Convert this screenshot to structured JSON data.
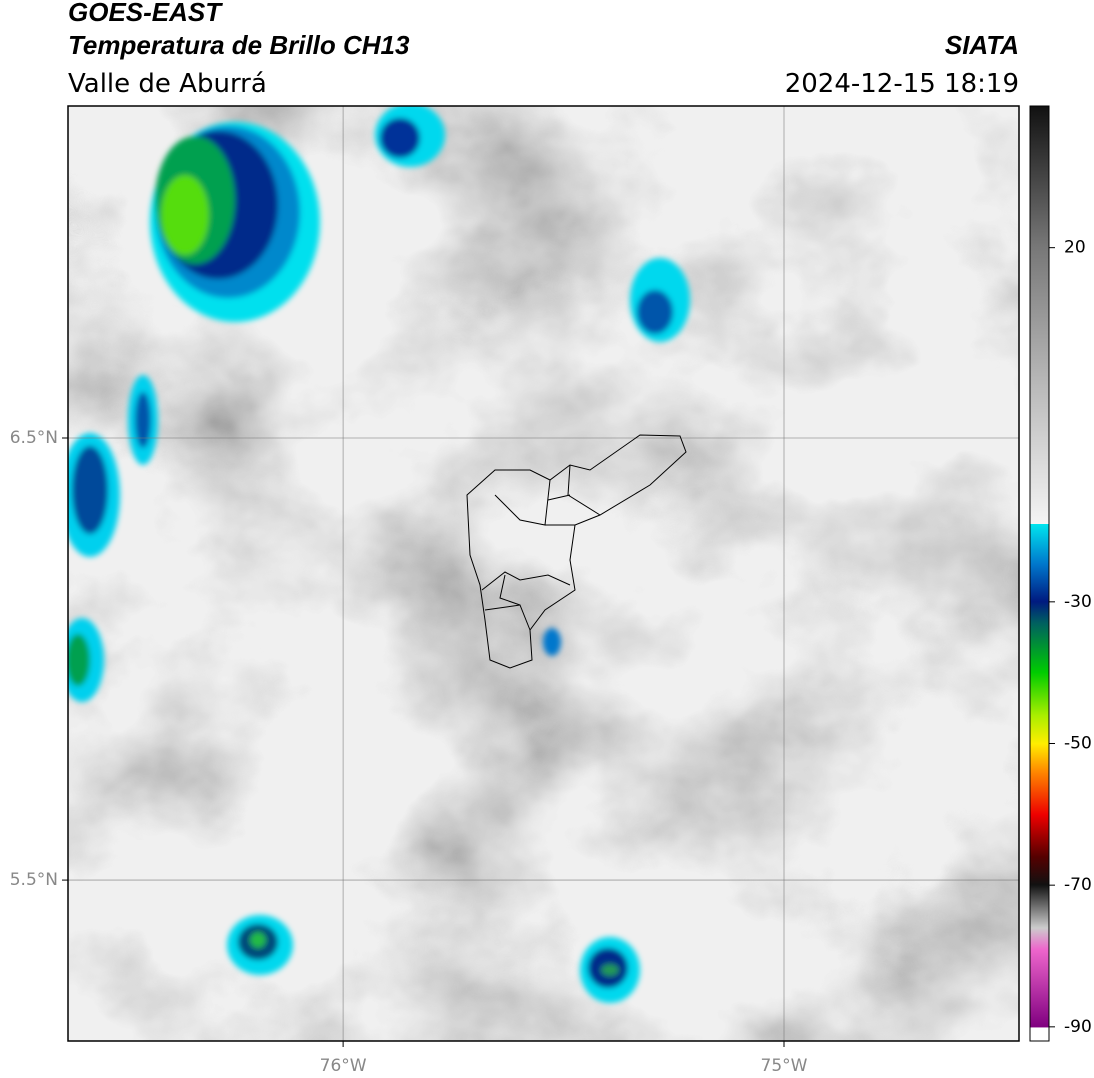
{
  "header": {
    "title": "GOES-EAST",
    "subtitle": "Temperatura de Brillo CH13",
    "region": "Valle de Aburrá",
    "source": "SIATA",
    "datetime": "2024-12-15 18:19"
  },
  "map": {
    "xlim": [
      -76.624,
      -74.467
    ],
    "ylim": [
      5.136,
      7.251
    ],
    "xticks": [
      {
        "value": -76,
        "label": "76°W"
      },
      {
        "value": -75,
        "label": "75°W"
      }
    ],
    "yticks": [
      {
        "value": 6.5,
        "label": "6.5°N"
      },
      {
        "value": 5.5,
        "label": "5.5°N"
      }
    ],
    "grid": true
  },
  "colorbar": {
    "lim": [
      -92,
      40
    ],
    "ticks": [
      20,
      -30,
      -50,
      -70,
      -90
    ]
  }
}
